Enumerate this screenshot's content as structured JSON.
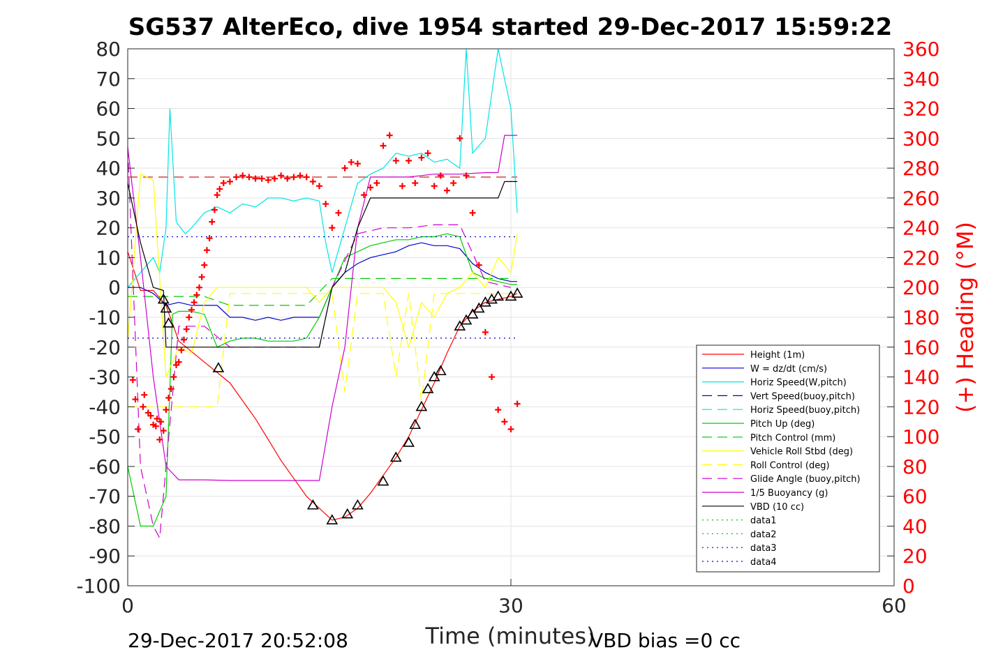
{
  "chart_data": {
    "type": "line",
    "title": "SG537 AlterEco, dive 1954 started 29-Dec-2017 15:59:22",
    "xlabel": "Time (minutes)",
    "ylabel": "",
    "ylabel_right": "(+) Heading (°M)",
    "xlim": [
      0,
      60
    ],
    "ylim": [
      -100,
      80
    ],
    "ylim_right": [
      0,
      360
    ],
    "x_ticks": [
      "0",
      "30",
      "60"
    ],
    "y_ticks": [
      "80",
      "70",
      "60",
      "50",
      "40",
      "30",
      "20",
      "10",
      "0",
      "-10",
      "-20",
      "-30",
      "-40",
      "-50",
      "-60",
      "-70",
      "-80",
      "-90",
      "-100"
    ],
    "y_ticks_right": [
      "360",
      "340",
      "320",
      "300",
      "280",
      "260",
      "240",
      "220",
      "200",
      "180",
      "160",
      "140",
      "120",
      "100",
      "80",
      "60",
      "40",
      "20",
      "0"
    ],
    "grid": true,
    "legend_position": "bottom-right",
    "footnote_left": "29-Dec-2017 20:52:08",
    "footnote_right": "VBD bias =0 cc",
    "series": [
      {
        "name": "Height (1m)",
        "color": "#ff0000",
        "style": "solid",
        "x": [
          0,
          1,
          2,
          3,
          4,
          6,
          8,
          10,
          12,
          14,
          15,
          16,
          17,
          18,
          19,
          20,
          21,
          22,
          23,
          24,
          25,
          26,
          27,
          28,
          29,
          30,
          30.5
        ],
        "y": [
          12,
          -1,
          -1,
          -6,
          -18,
          -25,
          -32,
          -44,
          -58,
          -70,
          -74,
          -78,
          -77,
          -74,
          -69,
          -63,
          -57,
          -50,
          -41,
          -32,
          -22,
          -13,
          -8,
          -5,
          -4,
          -3,
          -2
        ]
      },
      {
        "name": "W = dz/dt (cm/s)",
        "color": "#0000cc",
        "style": "solid",
        "x": [
          0,
          1,
          2,
          3,
          4,
          5,
          6,
          7,
          8,
          9,
          10,
          11,
          12,
          13,
          14,
          15,
          16,
          17,
          18,
          19,
          20,
          21,
          22,
          23,
          24,
          25,
          26,
          27,
          28,
          29,
          30,
          30.5
        ],
        "y": [
          0,
          0,
          -2,
          -6,
          -5,
          -6,
          -6,
          -6,
          -10,
          -10,
          -11,
          -10,
          -11,
          -10,
          -10,
          -10,
          0,
          5,
          8,
          10,
          11,
          12,
          14,
          15,
          14,
          14,
          13,
          8,
          5,
          3,
          2,
          2
        ]
      },
      {
        "name": "Horiz Speed(W,pitch)",
        "color": "#00e5e5",
        "style": "solid",
        "x": [
          0,
          2,
          2.5,
          3,
          3.3,
          3.8,
          4.5,
          5,
          6,
          7,
          8,
          9,
          10,
          11,
          12,
          13,
          14,
          15,
          15.5,
          16,
          17,
          18,
          19,
          20,
          21,
          22,
          23,
          24,
          25,
          26,
          26.5,
          27,
          28,
          29,
          30,
          30.5
        ],
        "y": [
          0,
          10,
          5,
          20,
          60,
          22,
          18,
          20,
          25,
          27,
          25,
          28,
          27,
          30,
          30,
          29,
          30,
          29,
          15,
          5,
          20,
          35,
          38,
          40,
          45,
          44,
          45,
          42,
          43,
          40,
          80,
          45,
          50,
          80,
          60,
          25
        ]
      },
      {
        "name": "Vert Speed(buoy,pitch)",
        "color": "#0000cc",
        "style": "dashed",
        "x": [],
        "y": []
      },
      {
        "name": "Horiz Speed(buoy,pitch)",
        "color": "#00e5e5",
        "style": "dashed",
        "x": [],
        "y": []
      },
      {
        "name": "Pitch Up (deg)",
        "color": "#00cc00",
        "style": "solid",
        "x": [
          0,
          1,
          2,
          3,
          3.5,
          4,
          5,
          6,
          7,
          8,
          9,
          10,
          11,
          12,
          13,
          14,
          15,
          16,
          17,
          18,
          19,
          20,
          21,
          22,
          23,
          24,
          25,
          26,
          27,
          28,
          29,
          30,
          30.5
        ],
        "y": [
          -60,
          -80,
          -80,
          -70,
          -9,
          -8,
          -8,
          -9,
          -20,
          -18,
          -17,
          -17,
          -18,
          -18,
          -18,
          -17,
          -10,
          0,
          10,
          12,
          14,
          15,
          16,
          16,
          17,
          17,
          18,
          17,
          5,
          3,
          2,
          1,
          1
        ]
      },
      {
        "name": "Pitch Control (mm)",
        "color": "#00cc00",
        "style": "dashed",
        "x": [
          0,
          2,
          4,
          6,
          8,
          10,
          12,
          14,
          16,
          18,
          20,
          22,
          24,
          26,
          28,
          30
        ],
        "y": [
          -3,
          -3,
          -3,
          -3,
          -6,
          -6,
          -6,
          -6,
          3,
          3,
          3,
          3,
          3,
          3,
          3,
          3
        ]
      },
      {
        "name": "Vehicle Roll Stbd (deg)",
        "color": "#ffff00",
        "style": "solid",
        "x": [
          0,
          1,
          2,
          3,
          4,
          5,
          6,
          7,
          8,
          10,
          12,
          14,
          15,
          16,
          17,
          18,
          19,
          20,
          21,
          22,
          23,
          24,
          25,
          26,
          27,
          28,
          29,
          30,
          30.5
        ],
        "y": [
          -18,
          38,
          36,
          -30,
          -20,
          -22,
          -5,
          0,
          0,
          0,
          0,
          0,
          -5,
          0,
          0,
          0,
          0,
          0,
          -5,
          -20,
          -5,
          -10,
          -2,
          0,
          5,
          0,
          10,
          5,
          18
        ]
      },
      {
        "name": "Roll Control (deg)",
        "color": "#ffff00",
        "style": "dashed",
        "x": [
          0,
          4,
          6,
          7,
          8,
          14,
          16,
          17,
          18,
          19,
          20,
          21,
          22,
          23,
          24,
          26,
          28,
          30
        ],
        "y": [
          -40,
          -40,
          -40,
          -40,
          -2,
          -2,
          -2,
          -35,
          -2,
          -2,
          -2,
          -30,
          -2,
          -38,
          -2,
          -2,
          -2,
          -2
        ]
      },
      {
        "name": "Glide Angle (buoy,pitch)",
        "color": "#cc00cc",
        "style": "dashed",
        "x": [
          0,
          1,
          2,
          2.5,
          3,
          4,
          6,
          8,
          10,
          12,
          14,
          15,
          16,
          18,
          20,
          22,
          24,
          26,
          28,
          30
        ],
        "y": [
          47,
          -60,
          -80,
          -84,
          -60,
          -13,
          -13,
          -20,
          -20,
          -20,
          -20,
          -20,
          0,
          18,
          20,
          20,
          21,
          21,
          2,
          0
        ]
      },
      {
        "name": "1/5 Buoyancy (g)",
        "color": "#cc00cc",
        "style": "solid",
        "x": [
          0,
          1,
          2,
          3,
          4,
          6,
          8,
          10,
          12,
          14,
          15,
          16,
          17,
          18,
          19,
          20,
          22,
          24,
          26,
          28,
          29,
          29.5,
          30,
          30.5
        ],
        "y": [
          47,
          10,
          -30,
          -60,
          -64.5,
          -64.5,
          -64.7,
          -64.7,
          -64.7,
          -64.7,
          -64.7,
          -40,
          -20,
          20,
          37,
          37,
          37,
          38,
          38,
          38.5,
          38.5,
          51,
          51,
          51
        ]
      },
      {
        "name": "VBD (10 cc)",
        "color": "#000000",
        "style": "solid",
        "x": [
          0,
          1,
          2,
          2.8,
          3,
          5,
          8,
          10,
          12,
          14,
          15,
          16,
          17,
          18,
          19,
          20,
          22,
          24,
          26,
          28,
          29,
          29.5,
          30,
          30.5
        ],
        "y": [
          35,
          15,
          0,
          -1,
          -20,
          -20,
          -20,
          -20,
          -20,
          -20,
          -20,
          0,
          5,
          20,
          30,
          30,
          30,
          30,
          30,
          30,
          30,
          35.5,
          35.5,
          35.5
        ]
      },
      {
        "name": "data1",
        "color": "#00cc00",
        "style": "dotted",
        "x": [],
        "y": []
      },
      {
        "name": "data2",
        "color": "#00cc00",
        "style": "dotted",
        "x": [],
        "y": []
      },
      {
        "name": "data3",
        "color": "#0000cc",
        "style": "dotted",
        "x": [
          0,
          30.5
        ],
        "y": [
          17,
          17
        ]
      },
      {
        "name": "data4",
        "color": "#0000cc",
        "style": "dotted",
        "x": [
          0,
          30.5
        ],
        "y": [
          -17,
          -17
        ]
      }
    ],
    "reference_lines": [
      {
        "color": "#cc0000",
        "style": "dashed",
        "y": 37,
        "x": [
          0,
          30.5
        ]
      }
    ],
    "heading_points": {
      "color": "#ff0000",
      "marker": "+",
      "axis": "right",
      "x": [
        0.4,
        0.6,
        0.8,
        1.2,
        1.3,
        1.6,
        1.8,
        2.0,
        2.2,
        2.3,
        2.5,
        2.6,
        2.8,
        3.0,
        3.2,
        3.4,
        3.6,
        3.8,
        4.0,
        4.2,
        4.4,
        4.6,
        4.8,
        5.0,
        5.2,
        5.4,
        5.6,
        5.8,
        6.0,
        6.2,
        6.4,
        6.6,
        6.8,
        7.0,
        7.2,
        7.5,
        8,
        8.5,
        9,
        9.5,
        10,
        10.5,
        11,
        11.5,
        12,
        12.5,
        13,
        13.5,
        14,
        14.5,
        15,
        15.5,
        16,
        16.5,
        17,
        17.5,
        18,
        18.5,
        19,
        19.5,
        20,
        20.5,
        21,
        21.5,
        22,
        22.5,
        23,
        23.5,
        24,
        24.5,
        25,
        25.5,
        26,
        26.5,
        27,
        27.5,
        28,
        28.5,
        29,
        29.5,
        30,
        30.5
      ],
      "y": [
        138,
        125,
        105,
        120,
        128,
        116,
        114,
        108,
        107,
        112,
        98,
        110,
        104,
        118,
        126,
        132,
        140,
        148,
        150,
        158,
        165,
        172,
        180,
        185,
        190,
        195,
        200,
        207,
        215,
        225,
        233,
        244,
        252,
        262,
        266,
        270,
        271,
        274,
        275,
        274,
        273,
        273,
        272,
        273,
        275,
        273,
        274,
        275,
        274,
        271,
        268,
        256,
        240,
        250,
        280,
        284,
        283,
        262,
        267,
        270,
        295,
        302,
        285,
        268,
        285,
        270,
        287,
        290,
        268,
        275,
        265,
        270,
        300,
        275,
        250,
        215,
        170,
        140,
        118,
        110,
        105,
        122
      ]
    },
    "depth_triangles": {
      "color": "#000000",
      "x": [
        2.8,
        3.0,
        3.2,
        7.1,
        14.5,
        16.0,
        17.2,
        18.0,
        20.0,
        21.0,
        22.0,
        22.5,
        23.0,
        23.5,
        24.0,
        24.5,
        26.0,
        26.5,
        27.0,
        27.5,
        28.0,
        28.5,
        29.0,
        30.0,
        30.5
      ],
      "y": [
        -4,
        -7,
        -12,
        -27,
        -73,
        -78,
        -76,
        -73,
        -65,
        -57,
        -52,
        -46,
        -40,
        -34,
        -30,
        -28,
        -13,
        -11,
        -9,
        -7,
        -5,
        -4,
        -3,
        -3,
        -2
      ]
    }
  }
}
